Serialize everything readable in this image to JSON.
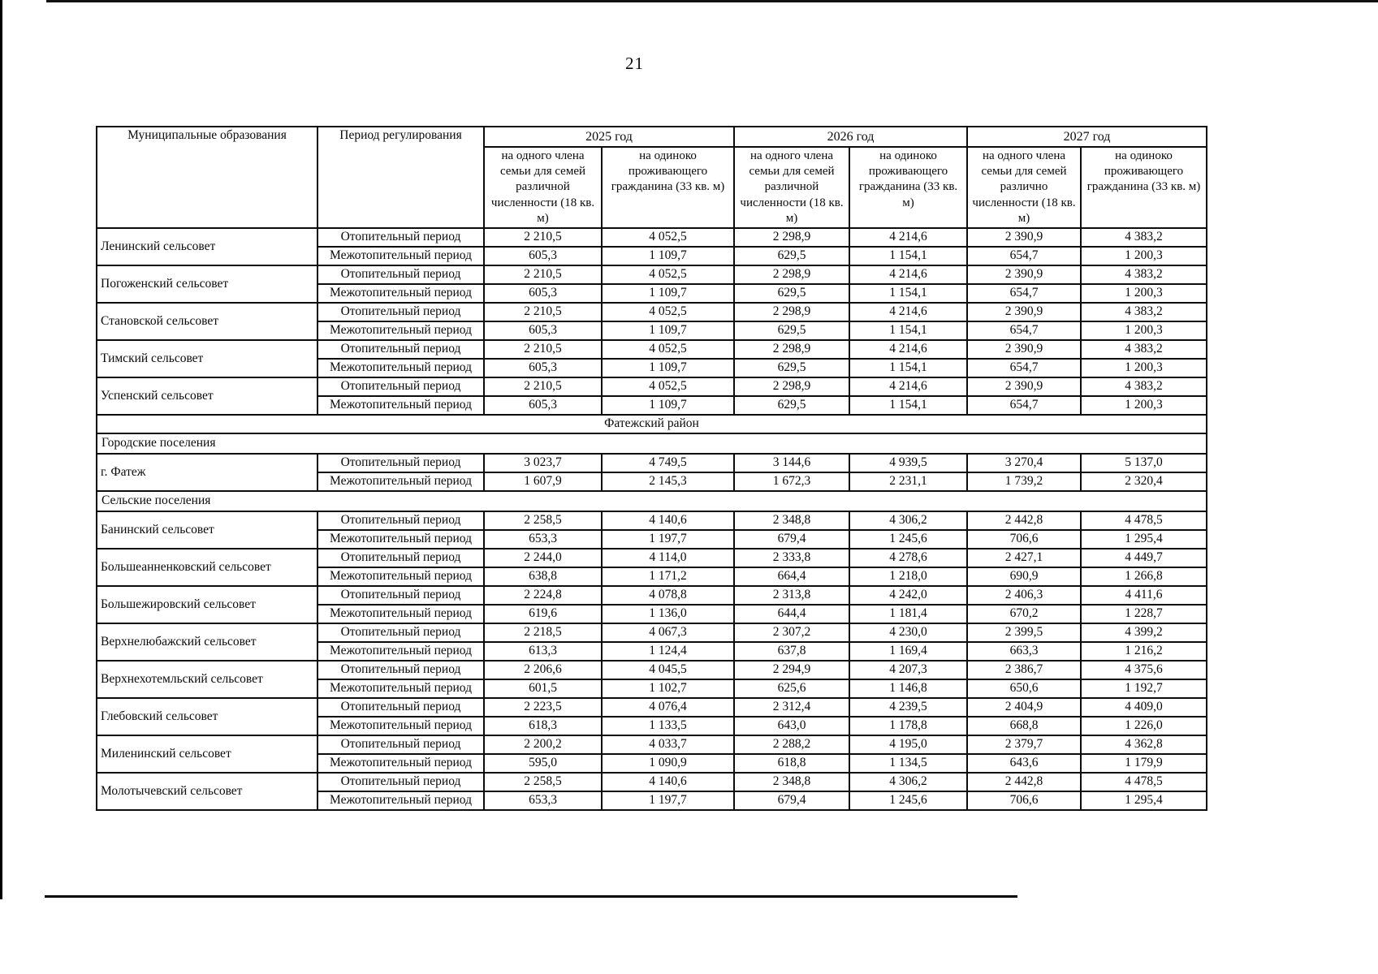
{
  "page": {
    "number": "21"
  },
  "table": {
    "header": {
      "col_municipality": "Муниципальные образования",
      "col_period": "Период регулирования",
      "year_groups": [
        {
          "year": "2025 год",
          "sub": [
            "на одного члена семьи для семей различной численности (18 кв. м)",
            "на одиноко проживающего гражданина (33 кв. м)"
          ]
        },
        {
          "year": "2026 год",
          "sub": [
            "на одного члена семьи для семей различной численности (18 кв. м)",
            "на одиноко проживающего гражданина (33 кв. м)"
          ]
        },
        {
          "year": "2027 год",
          "sub": [
            "на одного члена семьи для семей различно численности (18 кв. м)",
            "на одиноко проживающего гражданина (33 кв. м)"
          ]
        }
      ]
    },
    "period_labels": {
      "heating": "Отопительный период",
      "interheating": "Межотопительный период"
    },
    "rows": [
      {
        "type": "municipality",
        "name": "Ленинский сельсовет",
        "periods": [
          {
            "label": "Отопительный период",
            "values": [
              "2 210,5",
              "4 052,5",
              "2 298,9",
              "4 214,6",
              "2 390,9",
              "4 383,2"
            ]
          },
          {
            "label": "Межотопительный период",
            "values": [
              "605,3",
              "1 109,7",
              "629,5",
              "1 154,1",
              "654,7",
              "1 200,3"
            ]
          }
        ]
      },
      {
        "type": "municipality",
        "name": "Погоженский сельсовет",
        "periods": [
          {
            "label": "Отопительный период",
            "values": [
              "2 210,5",
              "4 052,5",
              "2 298,9",
              "4 214,6",
              "2 390,9",
              "4 383,2"
            ]
          },
          {
            "label": "Межотопительный период",
            "values": [
              "605,3",
              "1 109,7",
              "629,5",
              "1 154,1",
              "654,7",
              "1 200,3"
            ]
          }
        ]
      },
      {
        "type": "municipality",
        "name": "Становской сельсовет",
        "periods": [
          {
            "label": "Отопительный период",
            "values": [
              "2 210,5",
              "4 052,5",
              "2 298,9",
              "4 214,6",
              "2 390,9",
              "4 383,2"
            ]
          },
          {
            "label": "Межотопительный период",
            "values": [
              "605,3",
              "1 109,7",
              "629,5",
              "1 154,1",
              "654,7",
              "1 200,3"
            ]
          }
        ]
      },
      {
        "type": "municipality",
        "name": "Тимский сельсовет",
        "periods": [
          {
            "label": "Отопительный период",
            "values": [
              "2 210,5",
              "4 052,5",
              "2 298,9",
              "4 214,6",
              "2 390,9",
              "4 383,2"
            ]
          },
          {
            "label": "Межотопительный период",
            "values": [
              "605,3",
              "1 109,7",
              "629,5",
              "1 154,1",
              "654,7",
              "1 200,3"
            ]
          }
        ]
      },
      {
        "type": "municipality",
        "name": "Успенский сельсовет",
        "periods": [
          {
            "label": "Отопительный период",
            "values": [
              "2 210,5",
              "4 052,5",
              "2 298,9",
              "4 214,6",
              "2 390,9",
              "4 383,2"
            ]
          },
          {
            "label": "Межотопительный период",
            "values": [
              "605,3",
              "1 109,7",
              "629,5",
              "1 154,1",
              "654,7",
              "1 200,3"
            ]
          }
        ]
      },
      {
        "type": "section",
        "align": "center",
        "label": "Фатежский район"
      },
      {
        "type": "section",
        "align": "left",
        "label": "Городские поселения"
      },
      {
        "type": "municipality",
        "name": "г. Фатеж",
        "periods": [
          {
            "label": "Отопительный период",
            "values": [
              "3 023,7",
              "4 749,5",
              "3 144,6",
              "4 939,5",
              "3 270,4",
              "5 137,0"
            ]
          },
          {
            "label": "Межотопительный период",
            "values": [
              "1 607,9",
              "2 145,3",
              "1 672,3",
              "2 231,1",
              "1 739,2",
              "2 320,4"
            ]
          }
        ]
      },
      {
        "type": "section",
        "align": "left",
        "label": "Сельские поселения"
      },
      {
        "type": "municipality",
        "name": "Банинский сельсовет",
        "periods": [
          {
            "label": "Отопительный период",
            "values": [
              "2 258,5",
              "4 140,6",
              "2 348,8",
              "4 306,2",
              "2 442,8",
              "4 478,5"
            ]
          },
          {
            "label": "Межотопительный период",
            "values": [
              "653,3",
              "1 197,7",
              "679,4",
              "1 245,6",
              "706,6",
              "1 295,4"
            ]
          }
        ]
      },
      {
        "type": "municipality",
        "name": "Большеанненковский сельсовет",
        "periods": [
          {
            "label": "Отопительный период",
            "values": [
              "2 244,0",
              "4 114,0",
              "2 333,8",
              "4 278,6",
              "2 427,1",
              "4 449,7"
            ]
          },
          {
            "label": "Межотопительный период",
            "values": [
              "638,8",
              "1 171,2",
              "664,4",
              "1 218,0",
              "690,9",
              "1 266,8"
            ]
          }
        ]
      },
      {
        "type": "municipality",
        "name": "Большежировский сельсовет",
        "periods": [
          {
            "label": "Отопительный период",
            "values": [
              "2 224,8",
              "4 078,8",
              "2 313,8",
              "4 242,0",
              "2 406,3",
              "4 411,6"
            ]
          },
          {
            "label": "Межотопительный период",
            "values": [
              "619,6",
              "1 136,0",
              "644,4",
              "1 181,4",
              "670,2",
              "1 228,7"
            ]
          }
        ]
      },
      {
        "type": "municipality",
        "name": "Верхнелюбажский сельсовет",
        "periods": [
          {
            "label": "Отопительный период",
            "values": [
              "2 218,5",
              "4 067,3",
              "2 307,2",
              "4 230,0",
              "2 399,5",
              "4 399,2"
            ]
          },
          {
            "label": "Межотопительный период",
            "values": [
              "613,3",
              "1 124,4",
              "637,8",
              "1 169,4",
              "663,3",
              "1 216,2"
            ]
          }
        ]
      },
      {
        "type": "municipality",
        "name": "Верхнехотемльский сельсовет",
        "periods": [
          {
            "label": "Отопительный период",
            "values": [
              "2 206,6",
              "4 045,5",
              "2 294,9",
              "4 207,3",
              "2 386,7",
              "4 375,6"
            ]
          },
          {
            "label": "Межотопительный период",
            "values": [
              "601,5",
              "1 102,7",
              "625,6",
              "1 146,8",
              "650,6",
              "1 192,7"
            ]
          }
        ]
      },
      {
        "type": "municipality",
        "name": "Глебовский сельсовет",
        "periods": [
          {
            "label": "Отопительный период",
            "values": [
              "2 223,5",
              "4 076,4",
              "2 312,4",
              "4 239,5",
              "2 404,9",
              "4 409,0"
            ]
          },
          {
            "label": "Межотопительный период",
            "values": [
              "618,3",
              "1 133,5",
              "643,0",
              "1 178,8",
              "668,8",
              "1 226,0"
            ]
          }
        ]
      },
      {
        "type": "municipality",
        "name": "Миленинский сельсовет",
        "periods": [
          {
            "label": "Отопительный период",
            "values": [
              "2 200,2",
              "4 033,7",
              "2 288,2",
              "4 195,0",
              "2 379,7",
              "4 362,8"
            ]
          },
          {
            "label": "Межотопительный период",
            "values": [
              "595,0",
              "1 090,9",
              "618,8",
              "1 134,5",
              "643,6",
              "1 179,9"
            ]
          }
        ]
      },
      {
        "type": "municipality",
        "name": "Молотычевский сельсовет",
        "periods": [
          {
            "label": "Отопительный период",
            "values": [
              "2 258,5",
              "4 140,6",
              "2 348,8",
              "4 306,2",
              "2 442,8",
              "4 478,5"
            ]
          },
          {
            "label": "Межотопительный период",
            "values": [
              "653,3",
              "1 197,7",
              "679,4",
              "1 245,6",
              "706,6",
              "1 295,4"
            ]
          }
        ]
      }
    ]
  }
}
